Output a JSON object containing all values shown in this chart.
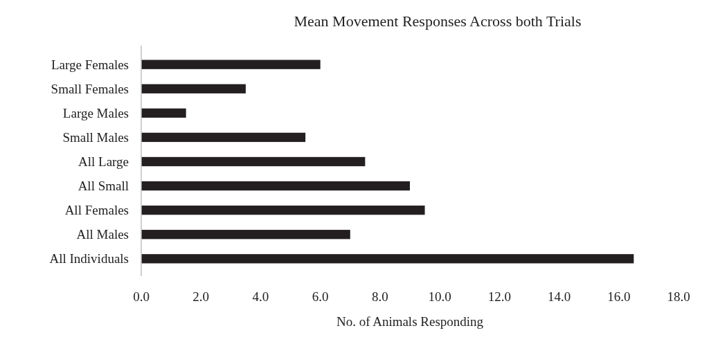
{
  "chart_data": {
    "type": "bar",
    "orientation": "horizontal",
    "title": "Mean Movement Responses Across both Trials",
    "xlabel": "No. of Animals Responding",
    "categories": [
      "Large Females",
      "Small Females",
      "Large Males",
      "Small Males",
      "All Large",
      "All Small",
      "All Females",
      "All Males",
      "All Individuals"
    ],
    "values": [
      6.0,
      3.5,
      1.5,
      5.5,
      7.5,
      9.0,
      9.5,
      7.0,
      16.5
    ],
    "color": "#231f20",
    "xlim": [
      0,
      18
    ],
    "xticks": [
      {
        "value": 0,
        "label": "0.0"
      },
      {
        "value": 2,
        "label": "2.0"
      },
      {
        "value": 4,
        "label": "4.0"
      },
      {
        "value": 6,
        "label": "6.0"
      },
      {
        "value": 8,
        "label": "8.0"
      },
      {
        "value": 10,
        "label": "10.0"
      },
      {
        "value": 12,
        "label": "12.0"
      },
      {
        "value": 14,
        "label": "14.0"
      },
      {
        "value": 16,
        "label": "16.0"
      },
      {
        "value": 18,
        "label": "18.0"
      }
    ],
    "grid": false
  }
}
